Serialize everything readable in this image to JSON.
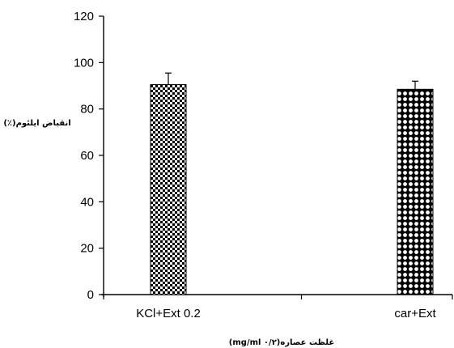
{
  "chart_data": {
    "type": "bar",
    "categories": [
      "KCl+Ext 0.2",
      "car+Ext"
    ],
    "values": [
      90.5,
      88.5
    ],
    "errors": [
      5,
      3.5
    ],
    "ylim": [
      0,
      120
    ],
    "yticks": [
      0,
      20,
      40,
      60,
      80,
      100,
      120
    ],
    "ylabel": "انقباض ایلئوم(٪)",
    "xlabel": "غلظت عصاره(mg/ml ۰/۲)",
    "title": "",
    "grid": false,
    "bar_patterns": [
      "checker",
      "dots"
    ],
    "colors": {
      "bar_fill": "#000000",
      "bar_pattern": "#ffffff",
      "axis": "#000000"
    }
  }
}
